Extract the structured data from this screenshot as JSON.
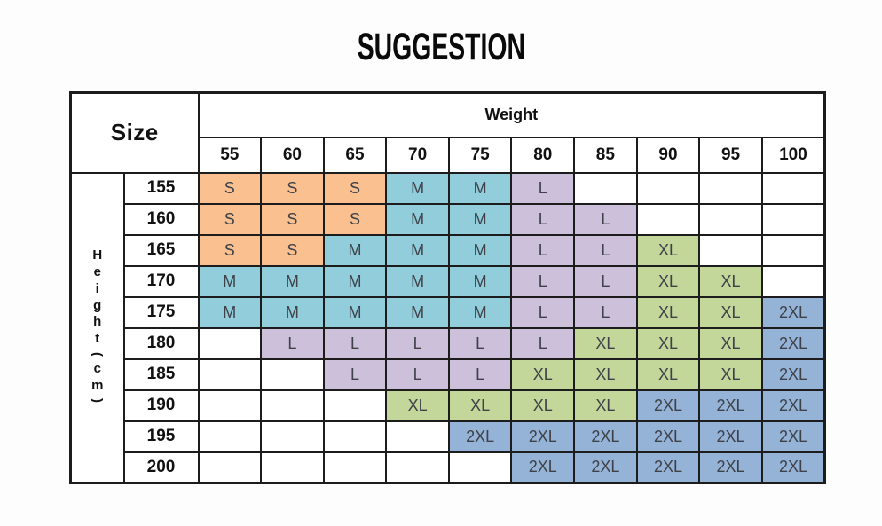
{
  "title": "SUGGESTION",
  "table": {
    "size_label": "Size",
    "weight_label": "Weight",
    "height_label_chars": [
      "H",
      "e",
      "i",
      "g",
      "h",
      "t",
      "(",
      "c",
      "m",
      ")"
    ],
    "weights": [
      "55",
      "60",
      "65",
      "70",
      "75",
      "80",
      "85",
      "90",
      "95",
      "100"
    ],
    "heights": [
      "155",
      "160",
      "165",
      "170",
      "175",
      "180",
      "185",
      "190",
      "195",
      "200"
    ],
    "rows": [
      [
        "S",
        "S",
        "S",
        "M",
        "M",
        "L",
        "",
        "",
        "",
        ""
      ],
      [
        "S",
        "S",
        "S",
        "M",
        "M",
        "L",
        "L",
        "",
        "",
        ""
      ],
      [
        "S",
        "S",
        "M",
        "M",
        "M",
        "L",
        "L",
        "XL",
        "",
        ""
      ],
      [
        "M",
        "M",
        "M",
        "M",
        "M",
        "L",
        "L",
        "XL",
        "XL",
        ""
      ],
      [
        "M",
        "M",
        "M",
        "M",
        "M",
        "L",
        "L",
        "XL",
        "XL",
        "2XL"
      ],
      [
        "",
        "L",
        "L",
        "L",
        "L",
        "L",
        "XL",
        "XL",
        "XL",
        "2XL"
      ],
      [
        "",
        "",
        "L",
        "L",
        "L",
        "XL",
        "XL",
        "XL",
        "XL",
        "2XL"
      ],
      [
        "",
        "",
        "",
        "XL",
        "XL",
        "XL",
        "XL",
        "2XL",
        "2XL",
        "2XL"
      ],
      [
        "",
        "",
        "",
        "",
        "2XL",
        "2XL",
        "2XL",
        "2XL",
        "2XL",
        "2XL"
      ],
      [
        "",
        "",
        "",
        "",
        "",
        "2XL",
        "2XL",
        "2XL",
        "2XL",
        "2XL"
      ]
    ],
    "size_colors": {
      "S": "#FAC08F",
      "M": "#92CDDC",
      "L": "#CCC0DA",
      "XL": "#C4D79B",
      "2XL": "#95B3D7"
    }
  }
}
